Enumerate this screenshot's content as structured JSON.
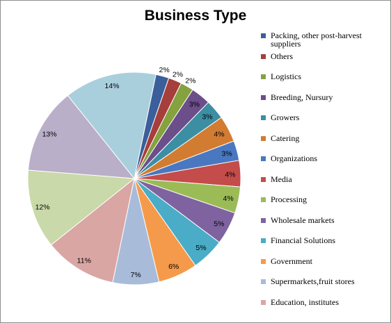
{
  "chart_data": {
    "type": "pie",
    "title": "Business Type",
    "legend_position": "right",
    "slices": [
      {
        "label": "Packing, other post-harvest suppliers",
        "value": 2,
        "display": "2%",
        "color": "#3a5f9a"
      },
      {
        "label": "Others",
        "value": 2,
        "display": "2%",
        "color": "#a63e3c"
      },
      {
        "label": "Logistics",
        "value": 2,
        "display": "2%",
        "color": "#85a23f"
      },
      {
        "label": "Breeding, Nursury",
        "value": 3,
        "display": "3%",
        "color": "#6b4e8a"
      },
      {
        "label": "Growers",
        "value": 3,
        "display": "3%",
        "color": "#3c8ea3"
      },
      {
        "label": "Catering",
        "value": 4,
        "display": "4%",
        "color": "#d27c32"
      },
      {
        "label": "Organizations",
        "value": 3,
        "display": "3%",
        "color": "#4a78c0"
      },
      {
        "label": "Media",
        "value": 4,
        "display": "4%",
        "color": "#c44c4a"
      },
      {
        "label": "Processing",
        "value": 4,
        "display": "4%",
        "color": "#9bbb57"
      },
      {
        "label": "Wholesale markets",
        "value": 5,
        "display": "5%",
        "color": "#7f63a0"
      },
      {
        "label": "Financial Solutions",
        "value": 5,
        "display": "5%",
        "color": "#4aacc6"
      },
      {
        "label": "Government",
        "value": 6,
        "display": "6%",
        "color": "#f59a4a"
      },
      {
        "label": "Supermarkets,fruit stores",
        "value": 7,
        "display": "7%",
        "color": "#a8bcd9"
      },
      {
        "label": "Education, institutes",
        "value": 11,
        "display": "11%",
        "color": "#d9a6a4"
      },
      {
        "label": "",
        "value": 12,
        "display": "12%",
        "color": "#c9d9a9"
      },
      {
        "label": "",
        "value": 13,
        "display": "13%",
        "color": "#b9afc9"
      },
      {
        "label": "",
        "value": 14,
        "display": "14%",
        "color": "#a9cfdc"
      }
    ]
  }
}
